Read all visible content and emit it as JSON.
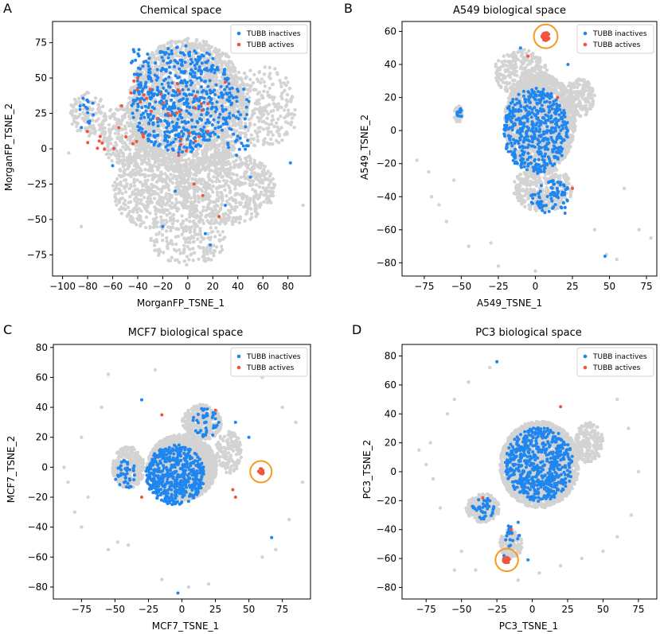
{
  "colors": {
    "background_points": "#d3d3d3",
    "inactive": "#1f86f0",
    "active": "#f0553c",
    "highlight_circle": "#f39c1f",
    "axis": "#000000"
  },
  "chart_data": [
    {
      "panel_label": "A",
      "type": "scatter",
      "title": "Chemical space",
      "xlabel": "MorganFP_TSNE_1",
      "ylabel": "MorganFP_TSNE_2",
      "xlim": [
        -108,
        98
      ],
      "ylim": [
        -90,
        90
      ],
      "xticks": [
        -100,
        -80,
        -60,
        -40,
        -20,
        0,
        20,
        40,
        60,
        80
      ],
      "yticks": [
        -75,
        -50,
        -25,
        0,
        25,
        50,
        75
      ],
      "legend": {
        "position": "top-right",
        "entries": [
          "TUBB inactives",
          "TUBB actives"
        ]
      },
      "cloud": {
        "blobs": [
          [
            0,
            30,
            48,
            48,
            2200
          ],
          [
            -30,
            -28,
            30,
            28,
            500
          ],
          [
            30,
            -28,
            40,
            26,
            650
          ],
          [
            -80,
            25,
            14,
            16,
            120
          ],
          [
            -50,
            10,
            20,
            22,
            250
          ],
          [
            60,
            30,
            26,
            30,
            250
          ],
          [
            0,
            -65,
            30,
            18,
            200
          ]
        ],
        "outliers": [
          [
            -95,
            -3
          ],
          [
            92,
            -40
          ],
          [
            85,
            15
          ],
          [
            -85,
            -55
          ]
        ]
      },
      "series": [
        {
          "name": "TUBB inactives",
          "blobs": [
            [
              -5,
              35,
              42,
              38,
              560
            ],
            [
              -80,
              28,
              7,
              10,
              16
            ],
            [
              40,
              20,
              12,
              25,
              45
            ],
            [
              -38,
              62,
              8,
              12,
              14
            ]
          ],
          "points": [
            [
              -20,
              -55
            ],
            [
              -10,
              -30
            ],
            [
              14,
              -60
            ],
            [
              18,
              -68
            ],
            [
              82,
              -10
            ],
            [
              -60,
              -12
            ],
            [
              30,
              -40
            ],
            [
              -85,
              15
            ],
            [
              50,
              -20
            ]
          ]
        },
        {
          "name": "TUBB actives",
          "blobs": [
            [
              -20,
              20,
              40,
              30,
              35
            ],
            [
              -75,
              5,
              8,
              10,
              5
            ],
            [
              -65,
              0,
              8,
              5,
              3
            ]
          ],
          "points": [
            [
              -40,
              50
            ],
            [
              -43,
              48
            ],
            [
              -30,
              42
            ],
            [
              -35,
              38
            ],
            [
              12,
              -33
            ],
            [
              25,
              -48
            ],
            [
              5,
              -25
            ],
            [
              30,
              47
            ]
          ]
        }
      ],
      "highlight": null
    },
    {
      "panel_label": "B",
      "type": "scatter",
      "title": "A549 biological space",
      "xlabel": "A549_TSNE_1",
      "ylabel": "A549_TSNE_2",
      "xlim": [
        -90,
        82
      ],
      "ylim": [
        -88,
        66
      ],
      "xticks": [
        -75,
        -50,
        -25,
        0,
        25,
        50,
        75
      ],
      "yticks": [
        -80,
        -60,
        -40,
        -20,
        0,
        20,
        40,
        60
      ],
      "legend": {
        "position": "top-right",
        "entries": [
          "TUBB inactives",
          "TUBB actives"
        ]
      },
      "cloud": {
        "blobs": [
          [
            3,
            5,
            24,
            30,
            2000
          ],
          [
            -10,
            35,
            18,
            14,
            300
          ],
          [
            -52,
            10,
            3,
            5,
            50
          ],
          [
            30,
            20,
            10,
            12,
            180
          ],
          [
            5,
            -35,
            20,
            14,
            400
          ]
        ],
        "outliers": [
          [
            -80,
            -18
          ],
          [
            -72,
            -25
          ],
          [
            -70,
            -40
          ],
          [
            -65,
            -45
          ],
          [
            -60,
            -55
          ],
          [
            -55,
            -30
          ],
          [
            -25,
            -82
          ],
          [
            0,
            -85
          ],
          [
            60,
            -35
          ],
          [
            70,
            -60
          ],
          [
            78,
            -65
          ],
          [
            48,
            -75
          ],
          [
            55,
            -78
          ],
          [
            -45,
            -70
          ],
          [
            -30,
            -68
          ],
          [
            40,
            -60
          ]
        ]
      },
      "series": [
        {
          "name": "TUBB inactives",
          "blobs": [
            [
              0,
              0,
              22,
              26,
              500
            ],
            [
              -51,
              11,
              2,
              3,
              10
            ],
            [
              10,
              -40,
              14,
              10,
              80
            ]
          ],
          "points": [
            [
              47,
              -76
            ],
            [
              20,
              -50
            ],
            [
              -10,
              50
            ],
            [
              22,
              40
            ]
          ]
        },
        {
          "name": "TUBB actives",
          "blobs": [
            [
              7,
              57,
              2.5,
              2.5,
              35
            ]
          ],
          "points": [
            [
              -5,
              45
            ],
            [
              15,
              20
            ],
            [
              25,
              -35
            ]
          ]
        }
      ],
      "highlight": {
        "cx": 7,
        "cy": 57,
        "r": 8
      }
    },
    {
      "panel_label": "C",
      "type": "scatter",
      "title": "MCF7 biological space",
      "xlabel": "MCF7_TSNE_1",
      "ylabel": "MCF7_TSNE_2",
      "xlim": [
        -96,
        96
      ],
      "ylim": [
        -88,
        82
      ],
      "xticks": [
        -75,
        -50,
        -25,
        0,
        25,
        50,
        75
      ],
      "yticks": [
        -80,
        -60,
        -40,
        -20,
        0,
        20,
        40,
        60,
        80
      ],
      "legend": {
        "position": "top-right",
        "entries": [
          "TUBB inactives",
          "TUBB actives"
        ]
      },
      "cloud": {
        "blobs": [
          [
            0,
            0,
            26,
            22,
            2200
          ],
          [
            15,
            30,
            15,
            12,
            300
          ],
          [
            -40,
            0,
            12,
            14,
            300
          ],
          [
            35,
            10,
            10,
            14,
            150
          ]
        ],
        "outliers": [
          [
            -88,
            0
          ],
          [
            -55,
            62
          ],
          [
            -48,
            -50
          ],
          [
            -40,
            -52
          ],
          [
            -55,
            -55
          ],
          [
            -75,
            -40
          ],
          [
            -80,
            -30
          ],
          [
            -85,
            -10
          ],
          [
            -20,
            65
          ],
          [
            60,
            60
          ],
          [
            75,
            40
          ],
          [
            85,
            30
          ],
          [
            90,
            -10
          ],
          [
            80,
            -35
          ],
          [
            70,
            -55
          ],
          [
            60,
            -60
          ],
          [
            -15,
            -75
          ],
          [
            5,
            -80
          ],
          [
            20,
            -78
          ],
          [
            40,
            75
          ],
          [
            -60,
            40
          ],
          [
            -75,
            20
          ],
          [
            -70,
            -20
          ]
        ]
      },
      "series": [
        {
          "name": "TUBB inactives",
          "blobs": [
            [
              -5,
              -5,
              22,
              20,
              520
            ],
            [
              18,
              30,
              10,
              10,
              40
            ],
            [
              -42,
              -5,
              8,
              10,
              40
            ]
          ],
          "points": [
            [
              -3,
              -84
            ],
            [
              67,
              -47
            ],
            [
              -30,
              45
            ],
            [
              40,
              30
            ],
            [
              50,
              20
            ]
          ]
        },
        {
          "name": "TUBB actives",
          "blobs": [
            [
              59,
              -3,
              2,
              2,
              15
            ]
          ],
          "points": [
            [
              25,
              38
            ],
            [
              -15,
              35
            ],
            [
              38,
              -15
            ],
            [
              40,
              -20
            ],
            [
              -30,
              -20
            ]
          ]
        }
      ],
      "highlight": {
        "cx": 59,
        "cy": -3,
        "r": 8
      }
    },
    {
      "panel_label": "D",
      "type": "scatter",
      "title": "PC3 biological space",
      "xlabel": "PC3_TSNE_1",
      "ylabel": "PC3_TSNE_2",
      "xlim": [
        -92,
        88
      ],
      "ylim": [
        -88,
        88
      ],
      "xticks": [
        -75,
        -50,
        -25,
        0,
        25,
        50,
        75
      ],
      "yticks": [
        -80,
        -60,
        -40,
        -20,
        0,
        20,
        40,
        60,
        80
      ],
      "legend": {
        "position": "top-right",
        "entries": [
          "TUBB inactives",
          "TUBB actives"
        ]
      },
      "cloud": {
        "blobs": [
          [
            5,
            5,
            28,
            30,
            2300
          ],
          [
            -35,
            -25,
            12,
            10,
            250
          ],
          [
            -15,
            -50,
            8,
            10,
            150
          ],
          [
            40,
            20,
            10,
            14,
            200
          ]
        ],
        "outliers": [
          [
            -80,
            15
          ],
          [
            -75,
            5
          ],
          [
            -72,
            20
          ],
          [
            -70,
            -5
          ],
          [
            -65,
            -25
          ],
          [
            -60,
            40
          ],
          [
            -55,
            50
          ],
          [
            -45,
            62
          ],
          [
            -30,
            72
          ],
          [
            -25,
            76
          ],
          [
            -10,
            -75
          ],
          [
            5,
            -70
          ],
          [
            20,
            -65
          ],
          [
            35,
            -60
          ],
          [
            50,
            -55
          ],
          [
            60,
            -45
          ],
          [
            70,
            -30
          ],
          [
            75,
            0
          ],
          [
            68,
            30
          ],
          [
            60,
            50
          ],
          [
            -50,
            -55
          ],
          [
            -40,
            -68
          ],
          [
            -55,
            -68
          ]
        ]
      },
      "series": [
        {
          "name": "TUBB inactives",
          "blobs": [
            [
              5,
              5,
              24,
              26,
              600
            ],
            [
              -35,
              -25,
              8,
              8,
              40
            ],
            [
              -15,
              -45,
              6,
              8,
              20
            ]
          ],
          "points": [
            [
              -25,
              76
            ],
            [
              -3,
              -61
            ],
            [
              -10,
              -35
            ],
            [
              -20,
              -58
            ]
          ]
        },
        {
          "name": "TUBB actives",
          "blobs": [
            [
              -18,
              -61,
              2.5,
              2,
              30
            ]
          ],
          "points": [
            [
              -15,
              -40
            ],
            [
              -35,
              -18
            ],
            [
              20,
              45
            ]
          ]
        }
      ],
      "highlight": {
        "cx": -18,
        "cy": -61,
        "r": 8
      }
    }
  ]
}
